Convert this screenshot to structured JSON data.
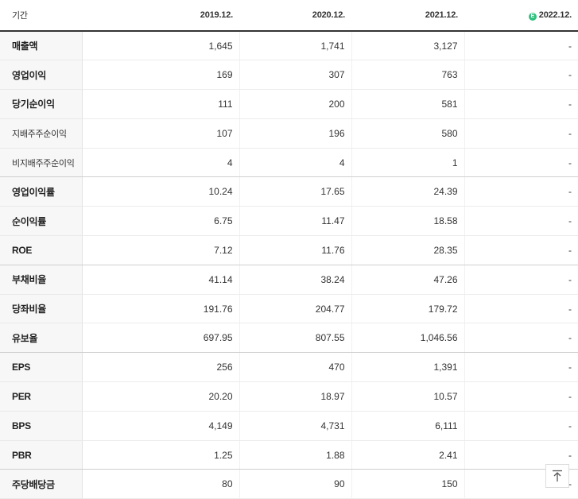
{
  "header": {
    "label": "기간",
    "periods": [
      "2019.12.",
      "2020.12.",
      "2021.12.",
      "2022.12."
    ],
    "estimate_badge": "E"
  },
  "colors": {
    "estimate_badge": "#2ec27e",
    "header_rule": "#333333",
    "label_bg": "#f7f7f7"
  },
  "rows": [
    {
      "label": "매출액",
      "values": [
        "1,645",
        "1,741",
        "3,127",
        "-"
      ]
    },
    {
      "label": "영업이익",
      "values": [
        "169",
        "307",
        "763",
        "-"
      ]
    },
    {
      "label": "당기순이익",
      "values": [
        "111",
        "200",
        "581",
        "-"
      ]
    },
    {
      "label": "지배주주순이익",
      "values": [
        "107",
        "196",
        "580",
        "-"
      ]
    },
    {
      "label": "비지배주주순이익",
      "values": [
        "4",
        "4",
        "1",
        "-"
      ]
    },
    {
      "label": "영업이익률",
      "values": [
        "10.24",
        "17.65",
        "24.39",
        "-"
      ]
    },
    {
      "label": "순이익률",
      "values": [
        "6.75",
        "11.47",
        "18.58",
        "-"
      ]
    },
    {
      "label": "ROE",
      "values": [
        "7.12",
        "11.76",
        "28.35",
        "-"
      ]
    },
    {
      "label": "부채비율",
      "values": [
        "41.14",
        "38.24",
        "47.26",
        "-"
      ]
    },
    {
      "label": "당좌비율",
      "values": [
        "191.76",
        "204.77",
        "179.72",
        "-"
      ]
    },
    {
      "label": "유보율",
      "values": [
        "697.95",
        "807.55",
        "1,046.56",
        "-"
      ]
    },
    {
      "label": "EPS",
      "values": [
        "256",
        "470",
        "1,391",
        "-"
      ]
    },
    {
      "label": "PER",
      "values": [
        "20.20",
        "18.97",
        "10.57",
        "-"
      ]
    },
    {
      "label": "BPS",
      "values": [
        "4,149",
        "4,731",
        "6,111",
        "-"
      ]
    },
    {
      "label": "PBR",
      "values": [
        "1.25",
        "1.88",
        "2.41",
        "-"
      ]
    },
    {
      "label": "주당배당금",
      "values": [
        "80",
        "90",
        "150",
        "-"
      ]
    }
  ],
  "scroll_top_icon": "arrow-up-to-top-icon"
}
